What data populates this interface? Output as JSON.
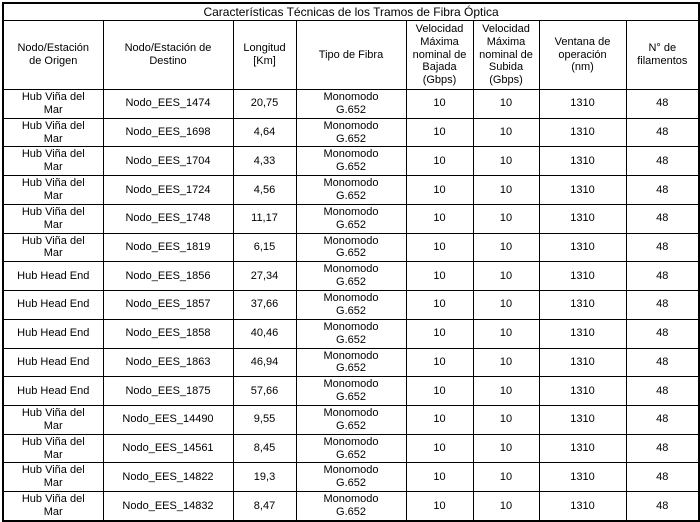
{
  "table": {
    "title": "Características Técnicas de los Tramos de Fibra Óptica",
    "columns": [
      {
        "key": "origin",
        "label": "Nodo/Estación\nde Origen"
      },
      {
        "key": "destination",
        "label": "Nodo/Estación de\nDestino"
      },
      {
        "key": "length_km",
        "label": "Longitud\n[Km]"
      },
      {
        "key": "fiber_type",
        "label": "Tipo de Fibra"
      },
      {
        "key": "down_gbps",
        "label": "Velocidad\nMáxima\nnominal de\nBajada\n(Gbps)"
      },
      {
        "key": "up_gbps",
        "label": "Velocidad\nMáxima\nnominal de\nSubida\n(Gbps)"
      },
      {
        "key": "window_nm",
        "label": "Ventana de\noperación\n(nm)"
      },
      {
        "key": "filaments",
        "label": "N° de\nfilamentos"
      }
    ],
    "rows": [
      {
        "origin": "Hub Viña del\nMar",
        "destination": "Nodo_EES_1474",
        "length_km": "20,75",
        "fiber_type": "Monomodo\nG.652",
        "down_gbps": "10",
        "up_gbps": "10",
        "window_nm": "1310",
        "filaments": "48"
      },
      {
        "origin": "Hub Viña del\nMar",
        "destination": "Nodo_EES_1698",
        "length_km": "4,64",
        "fiber_type": "Monomodo\nG.652",
        "down_gbps": "10",
        "up_gbps": "10",
        "window_nm": "1310",
        "filaments": "48"
      },
      {
        "origin": "Hub Viña del\nMar",
        "destination": "Nodo_EES_1704",
        "length_km": "4,33",
        "fiber_type": "Monomodo\nG.652",
        "down_gbps": "10",
        "up_gbps": "10",
        "window_nm": "1310",
        "filaments": "48"
      },
      {
        "origin": "Hub Viña del\nMar",
        "destination": "Nodo_EES_1724",
        "length_km": "4,56",
        "fiber_type": "Monomodo\nG.652",
        "down_gbps": "10",
        "up_gbps": "10",
        "window_nm": "1310",
        "filaments": "48"
      },
      {
        "origin": "Hub Viña del\nMar",
        "destination": "Nodo_EES_1748",
        "length_km": "11,17",
        "fiber_type": "Monomodo\nG.652",
        "down_gbps": "10",
        "up_gbps": "10",
        "window_nm": "1310",
        "filaments": "48"
      },
      {
        "origin": "Hub Viña del\nMar",
        "destination": "Nodo_EES_1819",
        "length_km": "6,15",
        "fiber_type": "Monomodo\nG.652",
        "down_gbps": "10",
        "up_gbps": "10",
        "window_nm": "1310",
        "filaments": "48"
      },
      {
        "origin": "Hub Head End",
        "destination": "Nodo_EES_1856",
        "length_km": "27,34",
        "fiber_type": "Monomodo\nG.652",
        "down_gbps": "10",
        "up_gbps": "10",
        "window_nm": "1310",
        "filaments": "48"
      },
      {
        "origin": "Hub Head End",
        "destination": "Nodo_EES_1857",
        "length_km": "37,66",
        "fiber_type": "Monomodo\nG.652",
        "down_gbps": "10",
        "up_gbps": "10",
        "window_nm": "1310",
        "filaments": "48"
      },
      {
        "origin": "Hub Head End",
        "destination": "Nodo_EES_1858",
        "length_km": "40,46",
        "fiber_type": "Monomodo\nG.652",
        "down_gbps": "10",
        "up_gbps": "10",
        "window_nm": "1310",
        "filaments": "48"
      },
      {
        "origin": "Hub Head End",
        "destination": "Nodo_EES_1863",
        "length_km": "46,94",
        "fiber_type": "Monomodo\nG.652",
        "down_gbps": "10",
        "up_gbps": "10",
        "window_nm": "1310",
        "filaments": "48"
      },
      {
        "origin": "Hub Head End",
        "destination": "Nodo_EES_1875",
        "length_km": "57,66",
        "fiber_type": "Monomodo\nG.652",
        "down_gbps": "10",
        "up_gbps": "10",
        "window_nm": "1310",
        "filaments": "48"
      },
      {
        "origin": "Hub Viña del\nMar",
        "destination": "Nodo_EES_14490",
        "length_km": "9,55",
        "fiber_type": "Monomodo\nG.652",
        "down_gbps": "10",
        "up_gbps": "10",
        "window_nm": "1310",
        "filaments": "48"
      },
      {
        "origin": "Hub Viña del\nMar",
        "destination": "Nodo_EES_14561",
        "length_km": "8,45",
        "fiber_type": "Monomodo\nG.652",
        "down_gbps": "10",
        "up_gbps": "10",
        "window_nm": "1310",
        "filaments": "48"
      },
      {
        "origin": "Hub Viña del\nMar",
        "destination": "Nodo_EES_14822",
        "length_km": "19,3",
        "fiber_type": "Monomodo\nG.652",
        "down_gbps": "10",
        "up_gbps": "10",
        "window_nm": "1310",
        "filaments": "48"
      },
      {
        "origin": "Hub Viña del\nMar",
        "destination": "Nodo_EES_14832",
        "length_km": "8,47",
        "fiber_type": "Monomodo\nG.652",
        "down_gbps": "10",
        "up_gbps": "10",
        "window_nm": "1310",
        "filaments": "48"
      }
    ],
    "colors": {
      "border": "#000000",
      "text": "#000000",
      "background": "#ffffff"
    }
  }
}
